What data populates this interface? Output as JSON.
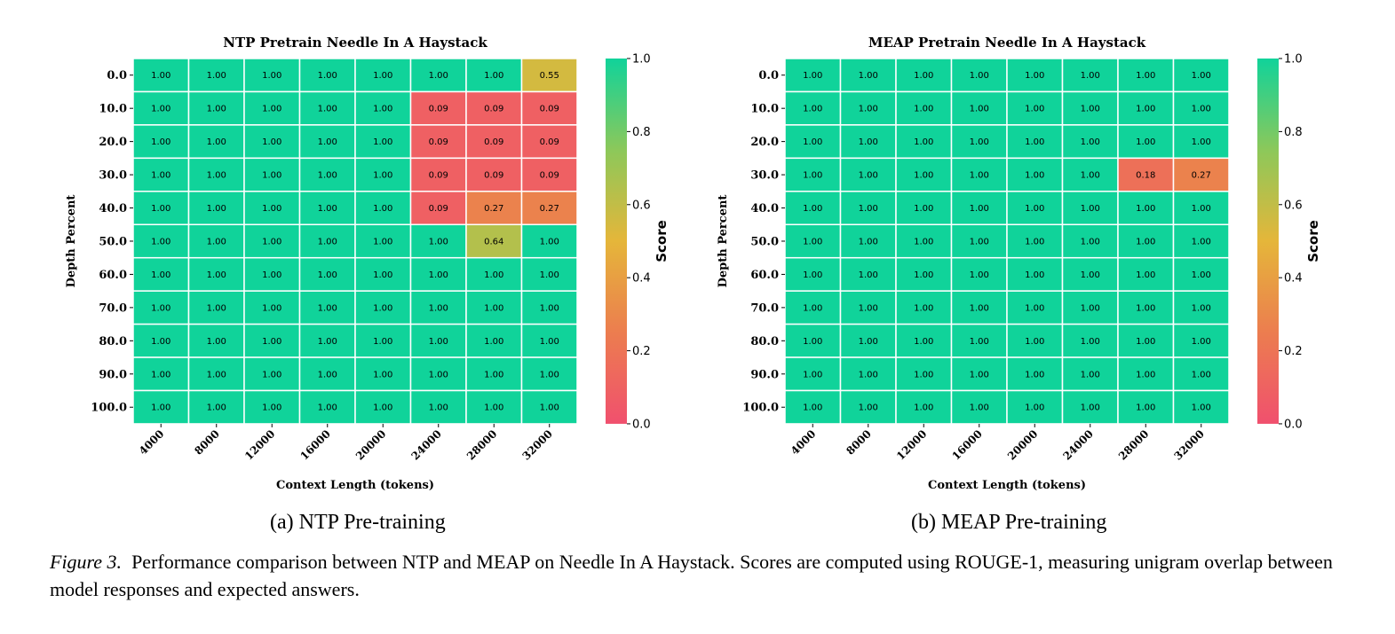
{
  "chart_data": [
    {
      "type": "heatmap",
      "title": "NTP Pretrain Needle In A Haystack",
      "xlabel": "Context Length (tokens)",
      "ylabel": "Depth Percent",
      "x": [
        "4000",
        "8000",
        "12000",
        "16000",
        "20000",
        "24000",
        "28000",
        "32000"
      ],
      "y": [
        "0.0",
        "10.0",
        "20.0",
        "30.0",
        "40.0",
        "50.0",
        "60.0",
        "70.0",
        "80.0",
        "90.0",
        "100.0"
      ],
      "values": [
        [
          1.0,
          1.0,
          1.0,
          1.0,
          1.0,
          1.0,
          1.0,
          0.55
        ],
        [
          1.0,
          1.0,
          1.0,
          1.0,
          1.0,
          0.09,
          0.09,
          0.09
        ],
        [
          1.0,
          1.0,
          1.0,
          1.0,
          1.0,
          0.09,
          0.09,
          0.09
        ],
        [
          1.0,
          1.0,
          1.0,
          1.0,
          1.0,
          0.09,
          0.09,
          0.09
        ],
        [
          1.0,
          1.0,
          1.0,
          1.0,
          1.0,
          0.09,
          0.27,
          0.27
        ],
        [
          1.0,
          1.0,
          1.0,
          1.0,
          1.0,
          1.0,
          0.64,
          1.0
        ],
        [
          1.0,
          1.0,
          1.0,
          1.0,
          1.0,
          1.0,
          1.0,
          1.0
        ],
        [
          1.0,
          1.0,
          1.0,
          1.0,
          1.0,
          1.0,
          1.0,
          1.0
        ],
        [
          1.0,
          1.0,
          1.0,
          1.0,
          1.0,
          1.0,
          1.0,
          1.0
        ],
        [
          1.0,
          1.0,
          1.0,
          1.0,
          1.0,
          1.0,
          1.0,
          1.0
        ],
        [
          1.0,
          1.0,
          1.0,
          1.0,
          1.0,
          1.0,
          1.0,
          1.0
        ]
      ],
      "colorbar": {
        "label": "Score",
        "range": [
          0.0,
          1.0
        ],
        "ticks": [
          "0.0",
          "0.2",
          "0.4",
          "0.6",
          "0.8",
          "1.0"
        ],
        "colors": [
          "#F0506E",
          "#EC7D4F",
          "#E5B63A",
          "#8CC85A",
          "#10D39A"
        ]
      },
      "subcaption": "(a)  NTP Pre-training"
    },
    {
      "type": "heatmap",
      "title": "MEAP Pretrain Needle In A Haystack",
      "xlabel": "Context Length (tokens)",
      "ylabel": "Depth Percent",
      "x": [
        "4000",
        "8000",
        "12000",
        "16000",
        "20000",
        "24000",
        "28000",
        "32000"
      ],
      "y": [
        "0.0",
        "10.0",
        "20.0",
        "30.0",
        "40.0",
        "50.0",
        "60.0",
        "70.0",
        "80.0",
        "90.0",
        "100.0"
      ],
      "values": [
        [
          1.0,
          1.0,
          1.0,
          1.0,
          1.0,
          1.0,
          1.0,
          1.0
        ],
        [
          1.0,
          1.0,
          1.0,
          1.0,
          1.0,
          1.0,
          1.0,
          1.0
        ],
        [
          1.0,
          1.0,
          1.0,
          1.0,
          1.0,
          1.0,
          1.0,
          1.0
        ],
        [
          1.0,
          1.0,
          1.0,
          1.0,
          1.0,
          1.0,
          0.18,
          0.27
        ],
        [
          1.0,
          1.0,
          1.0,
          1.0,
          1.0,
          1.0,
          1.0,
          1.0
        ],
        [
          1.0,
          1.0,
          1.0,
          1.0,
          1.0,
          1.0,
          1.0,
          1.0
        ],
        [
          1.0,
          1.0,
          1.0,
          1.0,
          1.0,
          1.0,
          1.0,
          1.0
        ],
        [
          1.0,
          1.0,
          1.0,
          1.0,
          1.0,
          1.0,
          1.0,
          1.0
        ],
        [
          1.0,
          1.0,
          1.0,
          1.0,
          1.0,
          1.0,
          1.0,
          1.0
        ],
        [
          1.0,
          1.0,
          1.0,
          1.0,
          1.0,
          1.0,
          1.0,
          1.0
        ],
        [
          1.0,
          1.0,
          1.0,
          1.0,
          1.0,
          1.0,
          1.0,
          1.0
        ]
      ],
      "colorbar": {
        "label": "Score",
        "range": [
          0.0,
          1.0
        ],
        "ticks": [
          "0.0",
          "0.2",
          "0.4",
          "0.6",
          "0.8",
          "1.0"
        ],
        "colors": [
          "#F0506E",
          "#EC7D4F",
          "#E5B63A",
          "#8CC85A",
          "#10D39A"
        ]
      },
      "subcaption": "(b)  MEAP Pre-training"
    }
  ],
  "caption": {
    "label": "Figure 3.",
    "text": "Performance comparison between NTP and MEAP on Needle In A Haystack. Scores are computed using ROUGE-1, measuring unigram overlap between model responses and expected answers."
  }
}
